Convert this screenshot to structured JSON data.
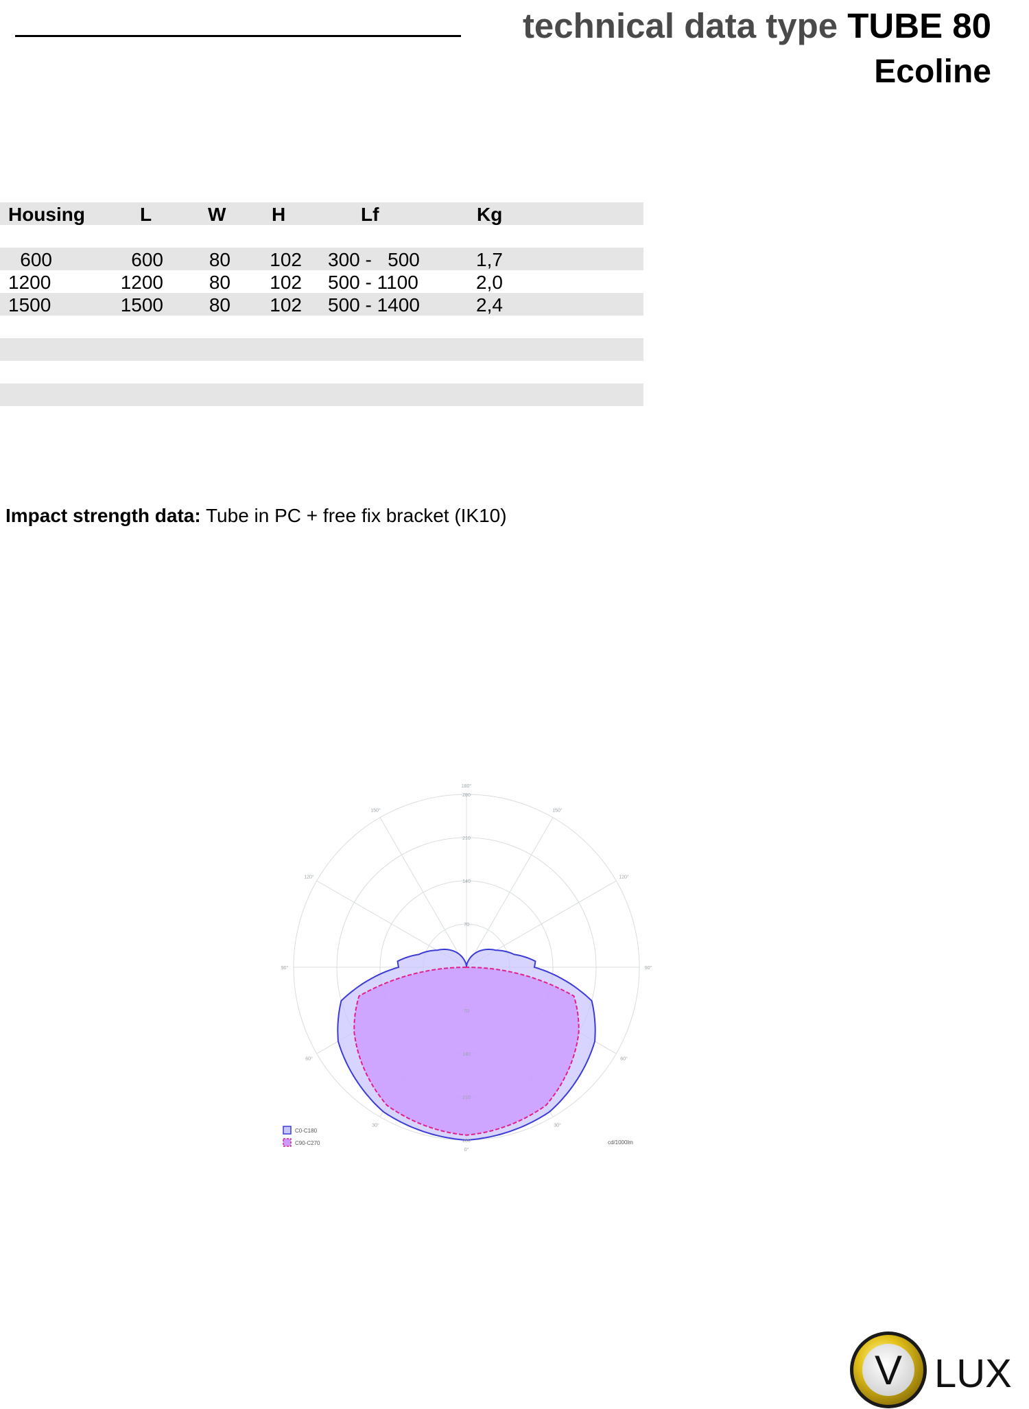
{
  "header": {
    "title_prefix": "technical data type",
    "title_model": "TUBE 80",
    "subtitle": "Ecoline"
  },
  "table": {
    "columns": [
      "Housing",
      "L",
      "W",
      "H",
      "Lf",
      "Kg"
    ],
    "rows": [
      [
        "600",
        "600",
        "80",
        "102",
        "300 -   500",
        "1,7"
      ],
      [
        "1200",
        "1200",
        "80",
        "102",
        "500 - 1100",
        "2,0"
      ],
      [
        "1500",
        "1500",
        "80",
        "102",
        "500 - 1400",
        "2,4"
      ]
    ]
  },
  "impact": {
    "label": "Impact strength data:",
    "value": "Tube in PC  + free fix bracket (IK10)"
  },
  "chart_data": {
    "type": "polar",
    "radial_ticks": [
      70,
      140,
      210,
      280
    ],
    "angle_labels": [
      "180°",
      "150°",
      "150°",
      "120°",
      "120°",
      "90°",
      "90°",
      "60°",
      "60°",
      "30°",
      "30°",
      "0°"
    ],
    "unit": "cd/1000lm",
    "series": [
      {
        "name": "C0-C180",
        "color": "#3b3bd6",
        "fill": "#c9c6ff",
        "values_deg": [
          0,
          30,
          60,
          75,
          90,
          95,
          105,
          120,
          135,
          150,
          165,
          180
        ],
        "values_cd": [
          280,
          270,
          240,
          210,
          110,
          112,
          80,
          55,
          40,
          25,
          10,
          0
        ]
      },
      {
        "name": "C90-C270",
        "color": "#e0208a",
        "fill": "#cc99ff",
        "values_deg": [
          0,
          30,
          60,
          75,
          90
        ],
        "values_cd": [
          272,
          258,
          210,
          180,
          0
        ]
      }
    ]
  },
  "logo": {
    "letter": "V",
    "text": "LUX"
  }
}
